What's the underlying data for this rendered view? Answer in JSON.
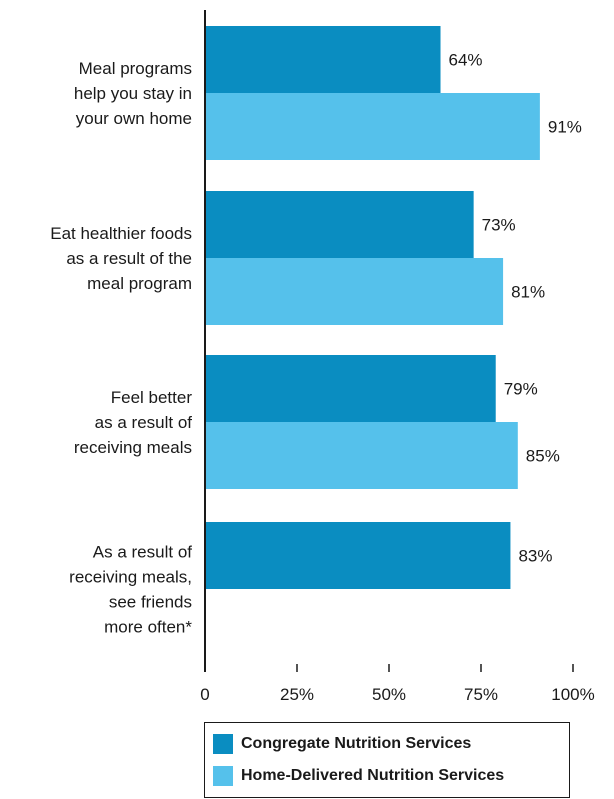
{
  "chart_data": {
    "type": "bar",
    "orientation": "horizontal",
    "categories": [
      [
        "Meal programs",
        "help you stay in",
        "your own home"
      ],
      [
        "Eat healthier foods",
        "as a result of the",
        "meal program"
      ],
      [
        "Feel better",
        "as a result of",
        "receiving meals"
      ],
      [
        "As a result of",
        "receiving meals,",
        "see friends",
        "more often*"
      ]
    ],
    "series": [
      {
        "name": "Congregate Nutrition Services",
        "color": "#0a8dc1",
        "values": [
          64,
          73,
          79,
          83
        ],
        "labels": [
          "64%",
          "73%",
          "79%",
          "83%"
        ]
      },
      {
        "name": "Home-Delivered Nutrition Services",
        "color": "#55c1eb",
        "values": [
          91,
          81,
          85,
          null
        ],
        "labels": [
          "91%",
          "81%",
          "85%",
          ""
        ]
      }
    ],
    "xlim": [
      0,
      100
    ],
    "ticks": [
      "0",
      "25%",
      "50%",
      "75%",
      "100%"
    ],
    "tick_values": [
      0,
      25,
      50,
      75,
      100
    ],
    "grid": false,
    "legend_position": "bottom"
  }
}
